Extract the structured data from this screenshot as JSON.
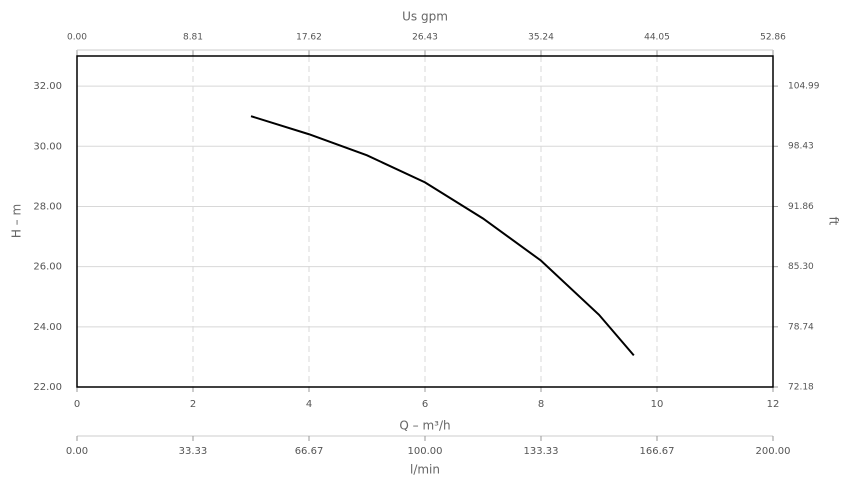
{
  "chart_data": {
    "type": "line",
    "x_label": "Q – m³/h",
    "y_label": "H – m",
    "x": [
      3,
      4,
      5,
      6,
      7,
      8,
      9,
      9.6
    ],
    "values": [
      31.0,
      30.4,
      29.7,
      28.8,
      27.6,
      26.2,
      24.4,
      23.05
    ],
    "color": "#000000",
    "xlim": [
      0,
      12
    ],
    "xticks": [
      0,
      2,
      4,
      6,
      8,
      10,
      12
    ],
    "ylim": [
      22,
      33
    ],
    "yticks": [
      {
        "value": 22,
        "label": "22.00"
      },
      {
        "value": 24,
        "label": "24.00"
      },
      {
        "value": 26,
        "label": "26.00"
      },
      {
        "value": 28,
        "label": "28.00"
      },
      {
        "value": 30,
        "label": "30.00"
      },
      {
        "value": 32,
        "label": "32.00"
      }
    ],
    "x2_label": "Us gpm",
    "x2lim": [
      0,
      52.86
    ],
    "x2ticks": [
      {
        "value": 0,
        "label": "0.00"
      },
      {
        "value": 8.81,
        "label": "8.81"
      },
      {
        "value": 17.62,
        "label": "17.62"
      },
      {
        "value": 26.43,
        "label": "26.43"
      },
      {
        "value": 35.24,
        "label": "35.24"
      },
      {
        "value": 44.05,
        "label": "44.05"
      },
      {
        "value": 52.86,
        "label": "52.86"
      }
    ],
    "y2_label": "ft",
    "y2lim": [
      72.18,
      108.27
    ],
    "y2ticks": [
      {
        "value": 72.18,
        "label": "72.18"
      },
      {
        "value": 78.74,
        "label": "78.74"
      },
      {
        "value": 85.3,
        "label": "85.30"
      },
      {
        "value": 91.86,
        "label": "91.86"
      },
      {
        "value": 98.43,
        "label": "98.43"
      },
      {
        "value": 104.99,
        "label": "104.99"
      }
    ],
    "x3_label": "l/min",
    "x3lim": [
      0,
      200
    ],
    "x3ticks": [
      {
        "value": 0,
        "label": "0.00"
      },
      {
        "value": 33.33,
        "label": "33.33"
      },
      {
        "value": 66.67,
        "label": "66.67"
      },
      {
        "value": 100,
        "label": "100.00"
      },
      {
        "value": 133.33,
        "label": "133.33"
      },
      {
        "value": 166.67,
        "label": "166.67"
      },
      {
        "value": 200,
        "label": "200.00"
      }
    ],
    "grid": true
  }
}
